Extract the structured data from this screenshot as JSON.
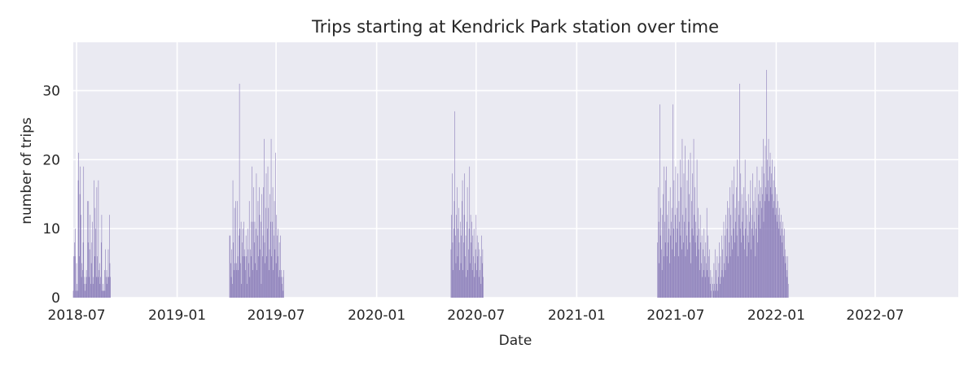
{
  "chart_data": {
    "type": "bar",
    "title": "Trips starting at Kendrick Park station over time",
    "xlabel": "Date",
    "ylabel": "number of trips",
    "x_axis": "date",
    "xlim": [
      "2018-06-25",
      "2022-11-30"
    ],
    "ylim": [
      0,
      37
    ],
    "x_ticks": [
      "2018-07",
      "2019-01",
      "2019-07",
      "2020-01",
      "2020-07",
      "2021-01",
      "2021-07",
      "2022-01",
      "2022-07"
    ],
    "x_tick_dates": [
      "2018-07-01",
      "2019-01-01",
      "2019-07-01",
      "2020-01-01",
      "2020-07-01",
      "2021-01-01",
      "2021-07-01",
      "2022-01-01",
      "2022-07-01"
    ],
    "y_ticks": [
      0,
      10,
      20,
      30
    ],
    "grid": true,
    "bar_color": "#8172b3",
    "background_color": "#eaeaf2",
    "series": [
      {
        "start_date": "2018-06-25",
        "values": [
          1,
          6,
          8,
          6,
          10,
          1,
          5,
          2,
          1,
          17,
          21,
          6,
          15,
          19,
          12,
          3,
          5,
          4,
          8,
          19,
          2,
          3,
          1,
          2,
          4,
          3,
          14,
          8,
          14,
          3,
          7,
          12,
          2,
          5,
          8,
          11,
          2,
          3,
          17,
          6,
          13,
          10,
          3,
          16,
          6,
          3,
          17,
          4,
          5,
          2,
          3,
          8,
          12,
          1,
          2,
          1,
          1,
          4,
          1,
          7,
          3,
          4,
          2,
          3,
          7,
          3,
          12,
          5,
          3
        ]
      },
      {
        "start_date": "2019-04-07",
        "values": [
          9,
          9,
          5,
          3,
          7,
          2,
          17,
          8,
          4,
          13,
          5,
          14,
          4,
          5,
          14,
          6,
          4,
          9,
          31,
          10,
          5,
          11,
          2,
          8,
          10,
          6,
          11,
          7,
          6,
          4,
          9,
          6,
          2,
          10,
          7,
          5,
          14,
          3,
          7,
          6,
          11,
          19,
          4,
          11,
          16,
          8,
          11,
          5,
          10,
          18,
          4,
          9,
          14,
          6,
          16,
          12,
          7,
          11,
          2,
          15,
          6,
          9,
          16,
          23,
          8,
          5,
          13,
          18,
          6,
          10,
          19,
          13,
          4,
          7,
          15,
          11,
          23,
          6,
          11,
          16,
          4,
          9,
          14,
          7,
          21,
          5,
          12,
          9,
          6,
          10,
          3,
          8,
          4,
          9,
          3,
          4,
          2,
          3,
          1,
          4
        ]
      },
      {
        "start_date": "2020-05-16",
        "values": [
          7,
          12,
          18,
          8,
          4,
          10,
          14,
          27,
          9,
          5,
          12,
          16,
          6,
          10,
          13,
          8,
          4,
          11,
          5,
          9,
          14,
          17,
          4,
          8,
          12,
          18,
          6,
          9,
          3,
          11,
          16,
          4,
          7,
          10,
          19,
          5,
          12,
          8,
          11,
          4,
          9,
          6,
          10,
          3,
          5,
          7,
          12,
          4,
          9,
          6,
          8,
          3,
          7,
          4,
          6,
          2,
          9,
          5,
          7,
          3
        ]
      },
      {
        "start_date": "2021-05-29",
        "values": [
          8,
          16,
          11,
          5,
          28,
          9,
          13,
          7,
          4,
          12,
          15,
          6,
          19,
          11,
          8,
          17,
          19,
          6,
          12,
          8,
          14,
          10,
          5,
          16,
          9,
          11,
          13,
          7,
          28,
          10,
          17,
          6,
          12,
          19,
          8,
          13,
          10,
          18,
          6,
          14,
          11,
          20,
          9,
          16,
          7,
          23,
          12,
          8,
          18,
          11,
          22,
          6,
          13,
          9,
          17,
          7,
          20,
          11,
          15,
          8,
          21,
          5,
          14,
          10,
          18,
          9,
          23,
          12,
          16,
          8,
          11,
          6,
          20,
          9,
          13,
          7,
          10,
          4,
          12,
          8,
          5,
          9,
          3,
          7,
          4,
          10,
          6,
          3,
          8,
          5,
          13,
          4,
          9,
          6,
          3,
          7,
          2,
          4,
          1,
          3,
          0,
          2,
          1,
          5,
          2,
          7,
          1,
          4,
          2,
          6,
          1,
          3,
          5,
          8,
          2,
          6,
          3,
          9,
          4,
          7,
          3,
          11,
          5,
          9,
          4,
          12,
          6,
          10,
          14,
          5,
          13,
          8,
          16,
          6,
          12,
          9,
          17,
          7,
          15,
          10,
          19,
          8,
          13,
          11,
          16,
          9,
          20,
          6,
          14,
          12,
          31,
          10,
          18,
          8,
          15,
          11,
          13,
          9,
          16,
          7,
          20,
          10,
          14,
          6,
          12,
          9,
          15,
          8,
          11,
          13,
          17,
          7,
          10,
          12,
          18,
          9,
          14,
          11,
          16,
          6,
          10,
          13,
          19,
          8,
          15,
          12,
          17,
          14,
          10,
          16,
          13,
          19,
          15,
          23,
          11,
          18,
          14,
          22,
          16,
          33,
          15,
          20,
          17,
          23,
          14,
          19,
          21,
          16,
          18,
          15,
          20,
          13,
          17,
          14,
          19,
          12,
          16,
          13,
          15,
          11,
          14,
          12,
          10,
          13,
          11,
          9,
          12,
          10,
          8,
          11,
          9,
          6,
          10,
          7,
          5,
          6,
          4,
          3,
          6,
          2
        ]
      }
    ]
  }
}
